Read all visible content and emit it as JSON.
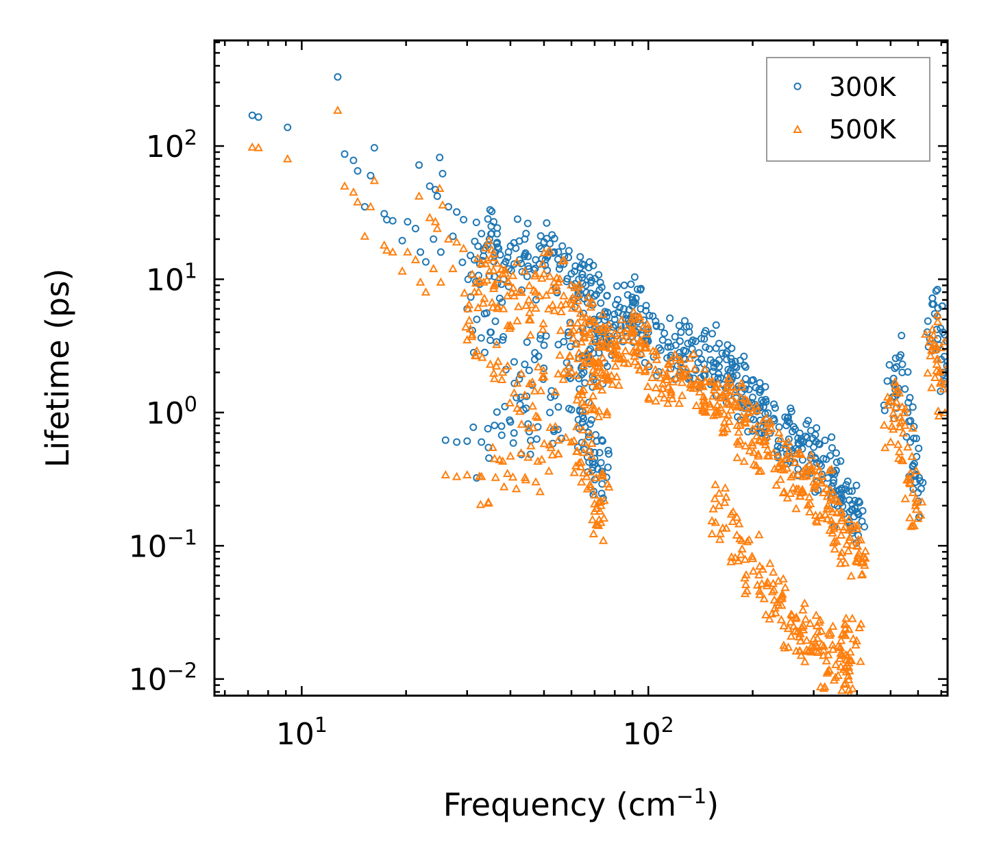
{
  "chart_data": {
    "type": "scatter",
    "xscale": "log",
    "yscale": "log",
    "xlabel": "Frequency (cm",
    "xlabel_sup": "−1",
    "xlabel_close": ")",
    "ylabel": "Lifetime (ps)",
    "xlim": [
      5.6,
      730
    ],
    "ylim": [
      0.0075,
      620
    ],
    "x_ticks": [
      {
        "value": 10,
        "base": "10",
        "exp": "1"
      },
      {
        "value": 100,
        "base": "10",
        "exp": "2"
      }
    ],
    "y_ticks": [
      {
        "value": 0.01,
        "base": "10",
        "exp": "−2"
      },
      {
        "value": 0.1,
        "base": "10",
        "exp": "−1"
      },
      {
        "value": 1,
        "base": "10",
        "exp": "0"
      },
      {
        "value": 10,
        "base": "10",
        "exp": "1"
      },
      {
        "value": 100,
        "base": "10",
        "exp": "2"
      }
    ],
    "legend_position": "top-right",
    "series": [
      {
        "name": "300K",
        "marker": "circle",
        "color": "#1f77b4",
        "points": [
          [
            7.2,
            170
          ],
          [
            7.5,
            165
          ],
          [
            9.1,
            138
          ],
          [
            12.7,
            330
          ],
          [
            13.3,
            87
          ],
          [
            14.1,
            78
          ],
          [
            14.5,
            65
          ],
          [
            15.2,
            35
          ],
          [
            16.2,
            97
          ],
          [
            15.8,
            60
          ],
          [
            17.3,
            31
          ],
          [
            17.6,
            28
          ],
          [
            18.3,
            27.5
          ],
          [
            19.5,
            19.5
          ],
          [
            20.2,
            27
          ],
          [
            21.3,
            24
          ],
          [
            21.8,
            72
          ],
          [
            22.0,
            16
          ],
          [
            22.8,
            13.5
          ],
          [
            23.4,
            50
          ],
          [
            24.0,
            20
          ],
          [
            24.6,
            42
          ],
          [
            25.0,
            82
          ],
          [
            25.5,
            62
          ],
          [
            24.3,
            47
          ],
          [
            25.2,
            16
          ],
          [
            26.5,
            35
          ],
          [
            27.3,
            21
          ],
          [
            28.0,
            32
          ],
          [
            29.3,
            28
          ],
          [
            30.2,
            10
          ],
          [
            31.5,
            14
          ],
          [
            33.0,
            22
          ],
          [
            33.5,
            16.5
          ],
          [
            34.8,
            20
          ],
          [
            35.2,
            25
          ],
          [
            35.8,
            27
          ],
          [
            37.0,
            17
          ],
          [
            38.2,
            10
          ],
          [
            39.5,
            16
          ],
          [
            41.0,
            13
          ],
          [
            42.5,
            14
          ],
          [
            44.0,
            20
          ],
          [
            45.2,
            12
          ],
          [
            47.3,
            14
          ],
          [
            48.5,
            13
          ],
          [
            50.0,
            19
          ],
          [
            52.0,
            18.5
          ],
          [
            53.5,
            16
          ],
          [
            55.0,
            16
          ],
          [
            57.0,
            13
          ],
          [
            60.0,
            11
          ],
          [
            63.0,
            10
          ],
          [
            66.0,
            9
          ],
          [
            70.0,
            7.5
          ],
          [
            75.0,
            5.5
          ],
          [
            80.0,
            5
          ],
          [
            85.0,
            6
          ],
          [
            90.0,
            7
          ],
          [
            95.0,
            6
          ],
          [
            100.0,
            4
          ],
          [
            110.0,
            3.5
          ],
          [
            120.0,
            3.2
          ],
          [
            130.0,
            3.3
          ],
          [
            140.0,
            2.8
          ],
          [
            150.0,
            3
          ],
          [
            160.0,
            2.2
          ],
          [
            170.0,
            2.1
          ],
          [
            180.0,
            1.9
          ],
          [
            190.0,
            1.5
          ],
          [
            200.0,
            1.3
          ],
          [
            215.0,
            1.1
          ],
          [
            230.0,
            0.9
          ],
          [
            250.0,
            0.8
          ],
          [
            265.0,
            0.75
          ],
          [
            280.0,
            0.6
          ],
          [
            300.0,
            0.55
          ],
          [
            320.0,
            0.45
          ],
          [
            340.0,
            0.35
          ],
          [
            360.0,
            0.25
          ],
          [
            380.0,
            0.22
          ],
          [
            400.0,
            0.18
          ],
          [
            26.0,
            0.62
          ],
          [
            28.0,
            0.6
          ],
          [
            30.0,
            0.61
          ],
          [
            33.0,
            0.6
          ],
          [
            36.0,
            0.8
          ],
          [
            40.0,
            0.85
          ],
          [
            45.0,
            0.82
          ],
          [
            48.0,
            0.78
          ],
          [
            52.0,
            1.0
          ],
          [
            55.0,
            1.1
          ],
          [
            60.0,
            1.05
          ],
          [
            65.0,
            0.9
          ],
          [
            70.0,
            0.5
          ],
          [
            73.0,
            0.42
          ],
          [
            30.0,
            6
          ],
          [
            32.0,
            5
          ],
          [
            35.0,
            4
          ],
          [
            38.0,
            3.5
          ],
          [
            41.0,
            2.4
          ],
          [
            44.0,
            2.3
          ],
          [
            47.0,
            2.5
          ],
          [
            50.0,
            3.2
          ],
          [
            57.0,
            3.4
          ],
          [
            62.0,
            3.3
          ],
          [
            68.0,
            3.0
          ],
          [
            72.0,
            2.8
          ],
          [
            500.0,
            1.2
          ],
          [
            510.0,
            1.8
          ],
          [
            520.0,
            2.2
          ],
          [
            530.0,
            2.6
          ],
          [
            540.0,
            2.0
          ],
          [
            550.0,
            1.5
          ],
          [
            560.0,
            1.0
          ],
          [
            570.0,
            0.6
          ],
          [
            580.0,
            0.4
          ],
          [
            590.0,
            0.3
          ],
          [
            600.0,
            0.25
          ],
          [
            660.0,
            7.2
          ],
          [
            665.0,
            6.5
          ],
          [
            670.0,
            5.5
          ],
          [
            680.0,
            4.2
          ],
          [
            690.0,
            3.2
          ],
          [
            700.0,
            2.5
          ],
          [
            710.0,
            2.0
          ]
        ]
      },
      {
        "name": "500K",
        "marker": "triangle",
        "color": "#ff7f0e",
        "points": [
          [
            7.2,
            98
          ],
          [
            7.5,
            97
          ],
          [
            9.1,
            80
          ],
          [
            12.7,
            185
          ],
          [
            13.3,
            50
          ],
          [
            14.1,
            45
          ],
          [
            14.5,
            38
          ],
          [
            15.2,
            21
          ],
          [
            16.2,
            55
          ],
          [
            15.8,
            35
          ],
          [
            17.3,
            18
          ],
          [
            17.6,
            16.5
          ],
          [
            18.3,
            16
          ],
          [
            19.5,
            11.5
          ],
          [
            20.2,
            16
          ],
          [
            21.3,
            14
          ],
          [
            21.8,
            42
          ],
          [
            22.0,
            9.5
          ],
          [
            22.8,
            8
          ],
          [
            23.4,
            29
          ],
          [
            24.0,
            12
          ],
          [
            24.6,
            24
          ],
          [
            25.0,
            48
          ],
          [
            25.5,
            36
          ],
          [
            24.3,
            27
          ],
          [
            25.2,
            9.5
          ],
          [
            26.5,
            20
          ],
          [
            27.3,
            12
          ],
          [
            28.0,
            19
          ],
          [
            29.3,
            17
          ],
          [
            30.2,
            6
          ],
          [
            31.5,
            8
          ],
          [
            33.0,
            13
          ],
          [
            33.5,
            9.5
          ],
          [
            34.8,
            11.5
          ],
          [
            35.2,
            14.5
          ],
          [
            35.8,
            15.5
          ],
          [
            37.0,
            10
          ],
          [
            38.2,
            6
          ],
          [
            39.5,
            9.5
          ],
          [
            41.0,
            7.5
          ],
          [
            42.5,
            8
          ],
          [
            44.0,
            11.5
          ],
          [
            45.2,
            7
          ],
          [
            47.3,
            8
          ],
          [
            48.5,
            7.5
          ],
          [
            50.0,
            11
          ],
          [
            52.0,
            10.5
          ],
          [
            53.5,
            9.5
          ],
          [
            55.0,
            9.5
          ],
          [
            57.0,
            7.5
          ],
          [
            60.0,
            6.5
          ],
          [
            63.0,
            6
          ],
          [
            66.0,
            5.2
          ],
          [
            70.0,
            4.3
          ],
          [
            75.0,
            3.2
          ],
          [
            80.0,
            2.9
          ],
          [
            85.0,
            3.5
          ],
          [
            90.0,
            4
          ],
          [
            95.0,
            3.5
          ],
          [
            100.0,
            2.3
          ],
          [
            110.0,
            2
          ],
          [
            120.0,
            1.8
          ],
          [
            130.0,
            1.9
          ],
          [
            140.0,
            1.6
          ],
          [
            150.0,
            1.7
          ],
          [
            160.0,
            1.3
          ],
          [
            170.0,
            1.2
          ],
          [
            180.0,
            1.1
          ],
          [
            190.0,
            0.85
          ],
          [
            200.0,
            0.75
          ],
          [
            215.0,
            0.6
          ],
          [
            230.0,
            0.5
          ],
          [
            250.0,
            0.45
          ],
          [
            265.0,
            0.42
          ],
          [
            280.0,
            0.33
          ],
          [
            300.0,
            0.3
          ],
          [
            320.0,
            0.25
          ],
          [
            340.0,
            0.18
          ],
          [
            360.0,
            0.12
          ],
          [
            380.0,
            0.11
          ],
          [
            400.0,
            0.1
          ],
          [
            26.0,
            0.34
          ],
          [
            28.0,
            0.33
          ],
          [
            30.0,
            0.34
          ],
          [
            33.0,
            0.33
          ],
          [
            36.0,
            0.45
          ],
          [
            40.0,
            0.47
          ],
          [
            45.0,
            0.46
          ],
          [
            48.0,
            0.43
          ],
          [
            52.0,
            0.57
          ],
          [
            55.0,
            0.62
          ],
          [
            60.0,
            0.6
          ],
          [
            65.0,
            0.5
          ],
          [
            70.0,
            0.24
          ],
          [
            73.0,
            0.2
          ],
          [
            30.0,
            3.5
          ],
          [
            32.0,
            2.9
          ],
          [
            35.0,
            2.3
          ],
          [
            38.0,
            2.0
          ],
          [
            41.0,
            1.4
          ],
          [
            44.0,
            1.35
          ],
          [
            47.0,
            1.45
          ],
          [
            50.0,
            1.85
          ],
          [
            57.0,
            2.0
          ],
          [
            62.0,
            1.9
          ],
          [
            68.0,
            1.7
          ],
          [
            72.0,
            1.6
          ],
          [
            220.0,
            0.05
          ],
          [
            240.0,
            0.04
          ],
          [
            260.0,
            0.03
          ],
          [
            280.0,
            0.025
          ],
          [
            300.0,
            0.02
          ],
          [
            320.0,
            0.015
          ],
          [
            340.0,
            0.018
          ],
          [
            360.0,
            0.015
          ],
          [
            380.0,
            0.014
          ],
          [
            390.0,
            0.02
          ],
          [
            200.0,
            0.08
          ],
          [
            180.0,
            0.12
          ],
          [
            160.0,
            0.2
          ],
          [
            500.0,
            0.6
          ],
          [
            510.0,
            0.9
          ],
          [
            520.0,
            1.2
          ],
          [
            530.0,
            1.4
          ],
          [
            540.0,
            1.1
          ],
          [
            550.0,
            0.8
          ],
          [
            560.0,
            0.55
          ],
          [
            570.0,
            0.35
          ],
          [
            580.0,
            0.25
          ],
          [
            590.0,
            0.2
          ],
          [
            600.0,
            0.16
          ],
          [
            660.0,
            4.2
          ],
          [
            665.0,
            3.8
          ],
          [
            670.0,
            3.2
          ],
          [
            680.0,
            2.5
          ],
          [
            690.0,
            2.0
          ],
          [
            700.0,
            1.7
          ],
          [
            710.0,
            1.5
          ]
        ]
      }
    ]
  }
}
